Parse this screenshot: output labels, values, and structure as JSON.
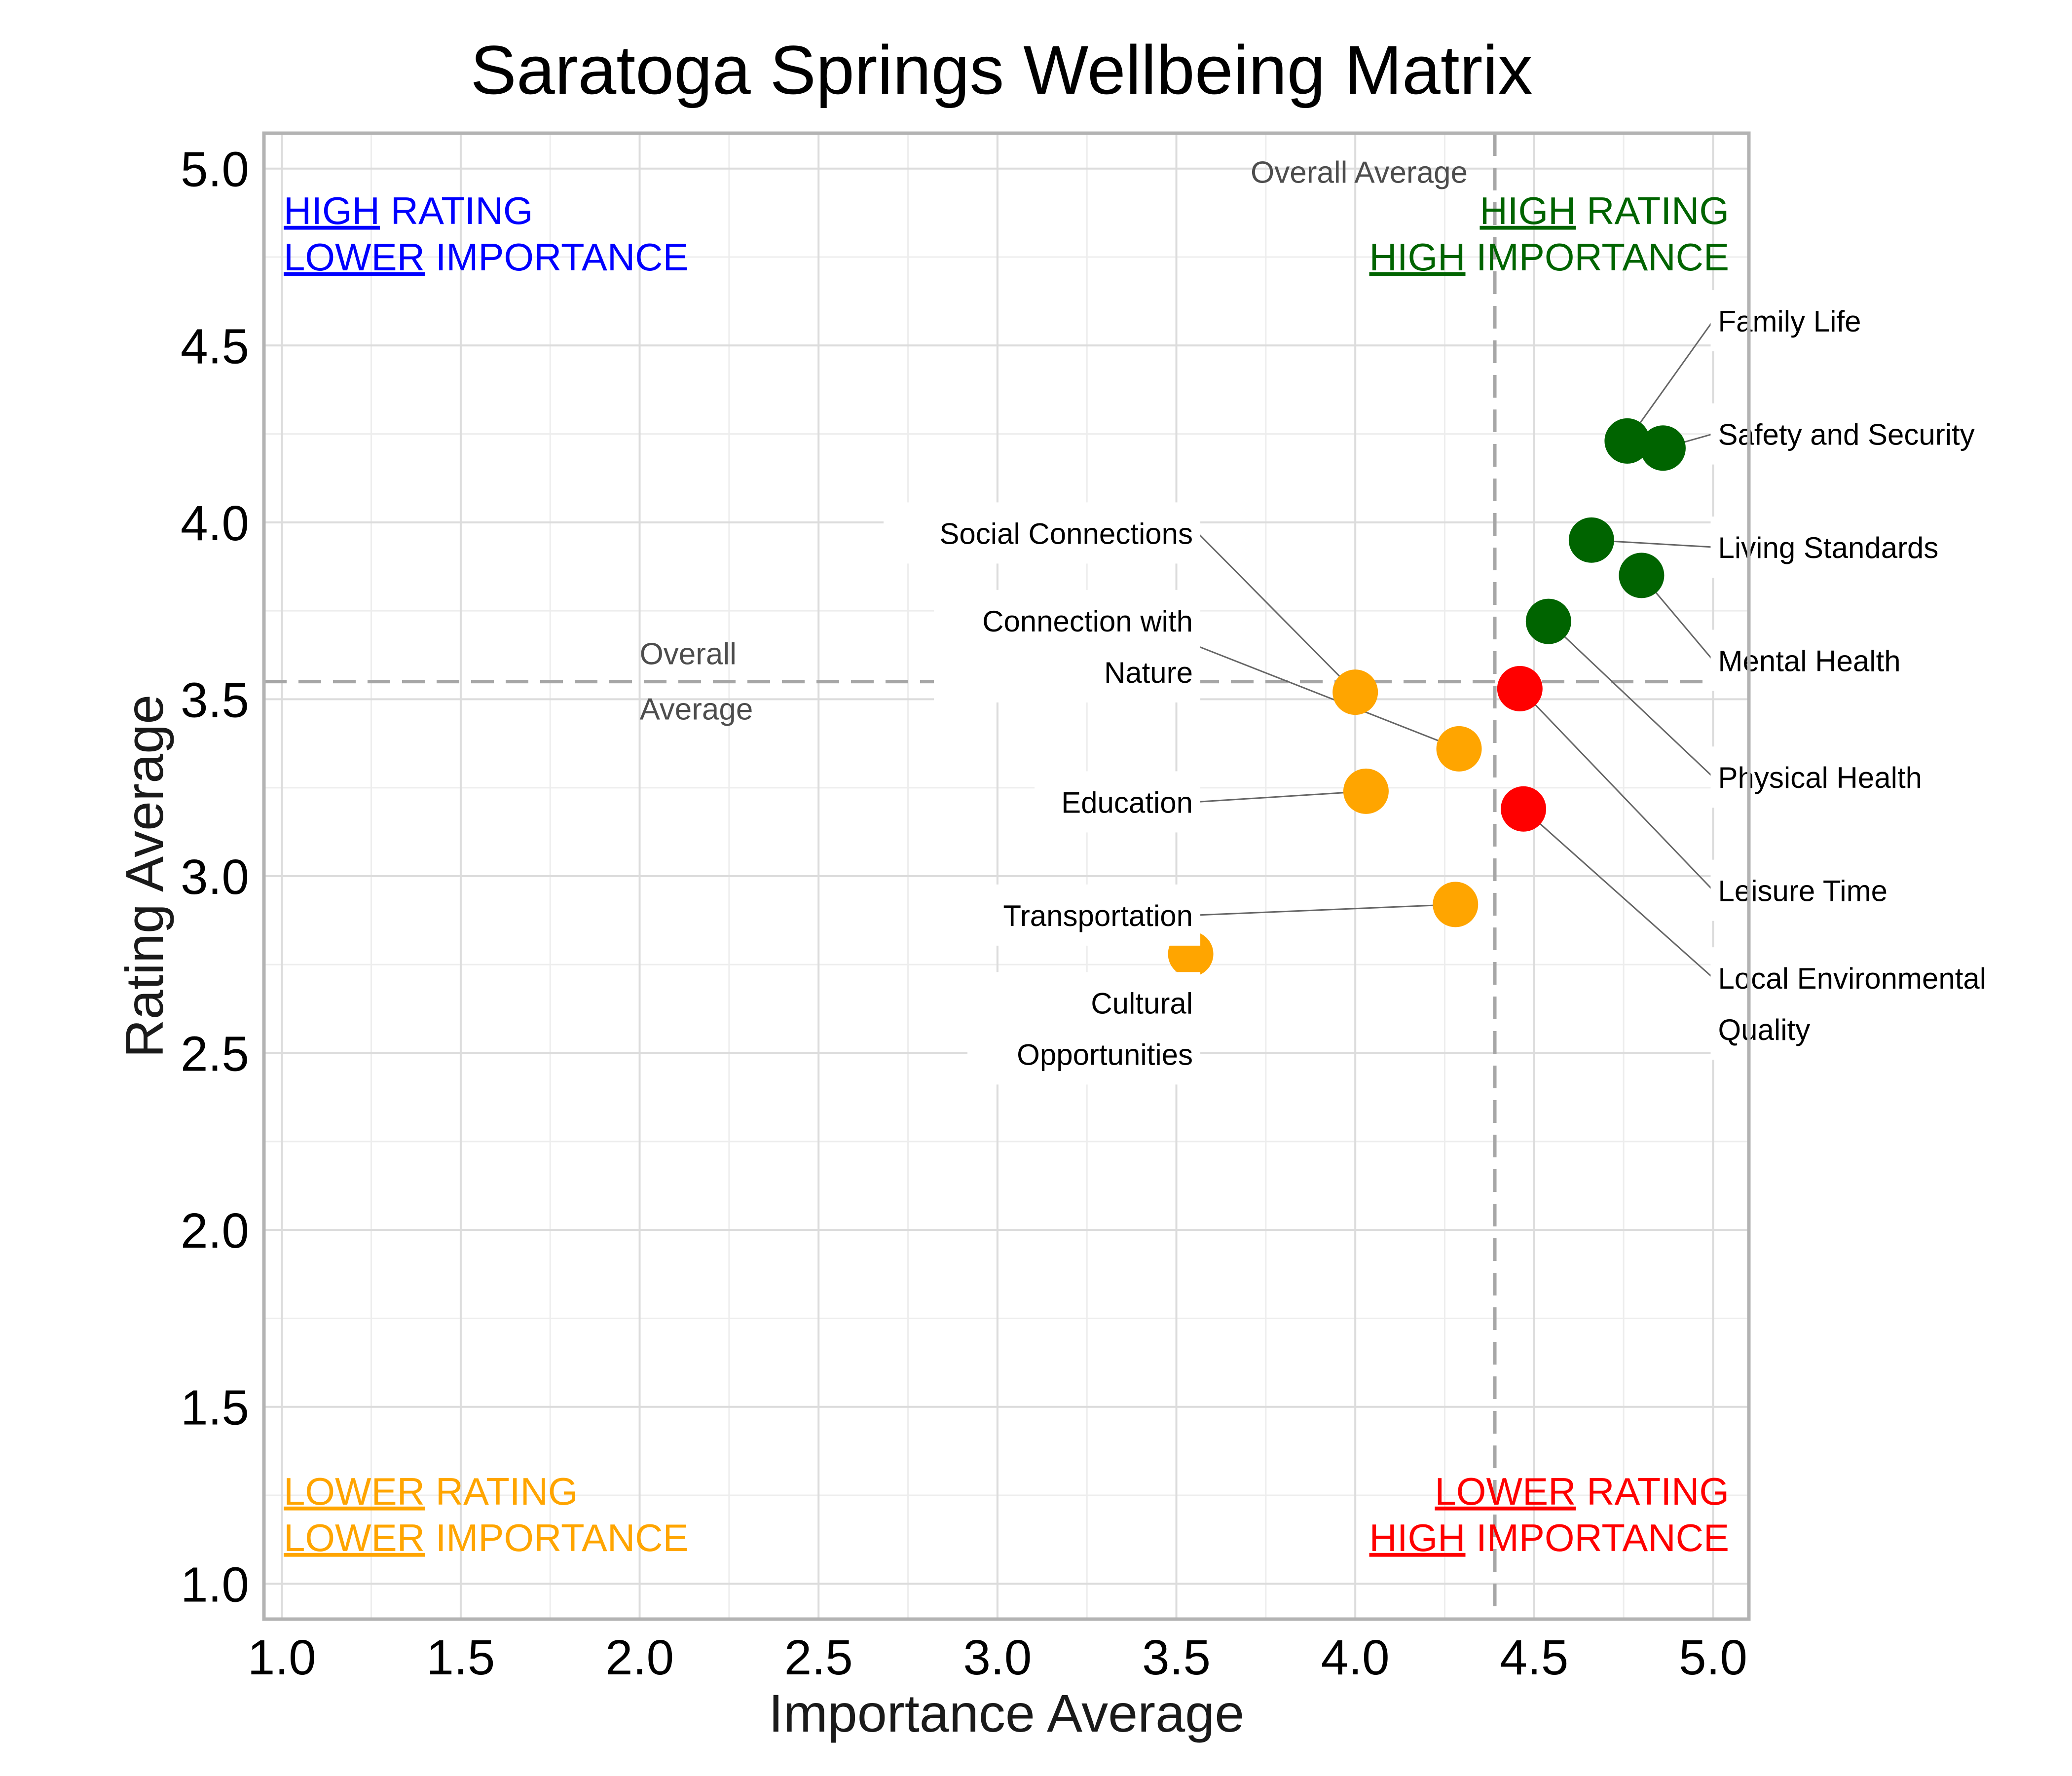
{
  "chart_data": {
    "type": "scatter",
    "title": "Saratoga Springs Wellbeing Matrix",
    "xlabel": "Importance Average",
    "ylabel": "Rating Average",
    "xlim": [
      0.95,
      5.1
    ],
    "ylim": [
      0.9,
      5.1
    ],
    "x_ticks": [
      "1.0",
      "1.5",
      "2.0",
      "2.5",
      "3.0",
      "3.5",
      "4.0",
      "4.5",
      "5.0"
    ],
    "y_ticks": [
      "1.0",
      "1.5",
      "2.0",
      "2.5",
      "3.0",
      "3.5",
      "4.0",
      "4.5",
      "5.0"
    ],
    "grid": true,
    "averages": {
      "importance": 4.39,
      "rating": 3.55,
      "vertical_label": "Overall Average",
      "horizontal_label": [
        "Overall",
        "Average"
      ]
    },
    "quadrants": {
      "top_left": {
        "color": "#0000ff",
        "line1": {
          "underlined": "HIGH",
          "rest": " RATING"
        },
        "line2": {
          "underlined": "LOWER",
          "rest": " IMPORTANCE"
        }
      },
      "top_right": {
        "color": "#006400",
        "line1": {
          "underlined": "HIGH",
          "rest": " RATING"
        },
        "line2": {
          "underlined": "HIGH",
          "rest": " IMPORTANCE"
        }
      },
      "bottom_left": {
        "color": "#ffa500",
        "line1": {
          "underlined": "LOWER",
          "rest": " RATING"
        },
        "line2": {
          "underlined": "LOWER",
          "rest": " IMPORTANCE"
        }
      },
      "bottom_right": {
        "color": "#ff0000",
        "line1": {
          "underlined": "LOWER",
          "rest": " RATING"
        },
        "line2": {
          "underlined": "HIGH",
          "rest": " IMPORTANCE"
        }
      }
    },
    "point_colors": {
      "high-high": "#006400",
      "low-high": "#ff0000",
      "low-low": "#ffa500"
    },
    "points": [
      {
        "lines": [
          "Family Life"
        ],
        "x": 4.76,
        "y": 4.23,
        "group": "high-high",
        "label_x": 5.0,
        "label_y": 4.57,
        "anchor": "start"
      },
      {
        "lines": [
          "Safety and Security"
        ],
        "x": 4.86,
        "y": 4.21,
        "group": "high-high",
        "label_x": 5.0,
        "label_y": 4.25,
        "anchor": "start"
      },
      {
        "lines": [
          "Living Standards"
        ],
        "x": 4.66,
        "y": 3.95,
        "group": "high-high",
        "label_x": 5.0,
        "label_y": 3.93,
        "anchor": "start"
      },
      {
        "lines": [
          "Mental Health"
        ],
        "x": 4.8,
        "y": 3.85,
        "group": "high-high",
        "label_x": 5.0,
        "label_y": 3.61,
        "anchor": "start"
      },
      {
        "lines": [
          "Physical Health"
        ],
        "x": 4.54,
        "y": 3.72,
        "group": "high-high",
        "label_x": 5.0,
        "label_y": 3.28,
        "anchor": "start"
      },
      {
        "lines": [
          "Leisure Time"
        ],
        "x": 4.46,
        "y": 3.53,
        "group": "low-high",
        "label_x": 5.0,
        "label_y": 2.96,
        "anchor": "start"
      },
      {
        "lines": [
          "Local Environmental",
          "Quality"
        ],
        "x": 4.47,
        "y": 3.19,
        "group": "low-high",
        "label_x": 5.0,
        "label_y": 2.64,
        "anchor": "start"
      },
      {
        "lines": [
          "Social Connections"
        ],
        "x": 4.0,
        "y": 3.52,
        "group": "low-low",
        "label_x": 3.56,
        "label_y": 3.97,
        "anchor": "end"
      },
      {
        "lines": [
          "Connection with",
          "Nature"
        ],
        "x": 4.29,
        "y": 3.36,
        "group": "low-low",
        "label_x": 3.56,
        "label_y": 3.65,
        "anchor": "end"
      },
      {
        "lines": [
          "Education"
        ],
        "x": 4.03,
        "y": 3.24,
        "group": "low-low",
        "label_x": 3.56,
        "label_y": 3.21,
        "anchor": "end"
      },
      {
        "lines": [
          "Transportation"
        ],
        "x": 4.28,
        "y": 2.92,
        "group": "low-low",
        "label_x": 3.56,
        "label_y": 2.89,
        "anchor": "end"
      },
      {
        "lines": [
          "Cultural",
          "Opportunities"
        ],
        "x": 3.54,
        "y": 2.78,
        "group": "low-low",
        "label_x": 3.56,
        "label_y": 2.57,
        "anchor": "end"
      }
    ]
  }
}
